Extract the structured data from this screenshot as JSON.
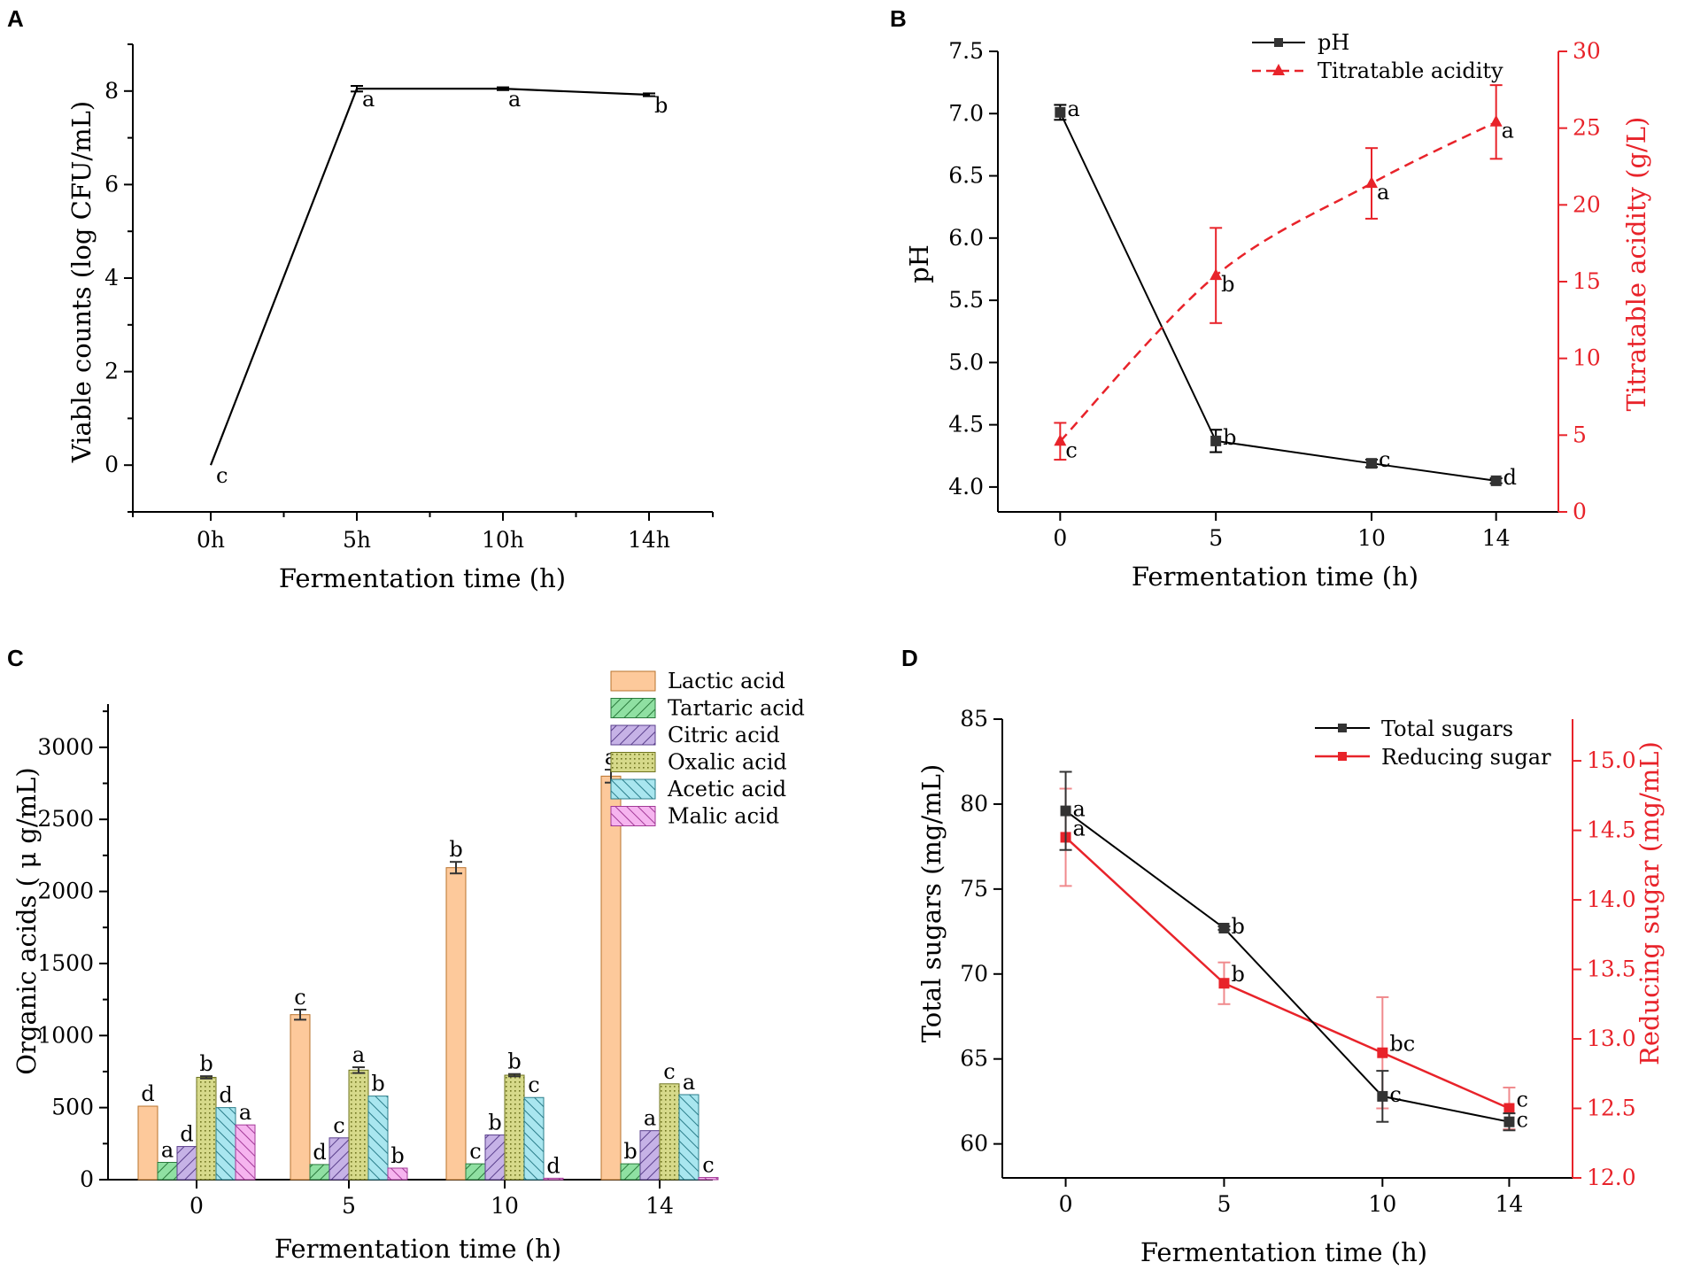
{
  "figure": {
    "panel_labels": [
      "A",
      "B",
      "C",
      "D"
    ]
  },
  "colors": {
    "black": "#000000",
    "dark": "#333333",
    "red": "#e8232a"
  },
  "chart_data": [
    {
      "id": "A",
      "type": "line",
      "xlabel": "Fermentation time (h)",
      "ylabel": "Viable counts (log CFU/mL)",
      "categories": [
        "0h",
        "5h",
        "10h",
        "14h"
      ],
      "ylim": [
        -1,
        9
      ],
      "yticks": [
        0,
        2,
        4,
        6,
        8
      ],
      "series": [
        {
          "name": "Viable counts",
          "values": [
            0,
            8.05,
            8.05,
            7.92
          ],
          "errors": [
            0,
            0.06,
            0.03,
            0.03
          ],
          "letters": [
            "c",
            "a",
            "a",
            "b"
          ]
        }
      ]
    },
    {
      "id": "B",
      "type": "line",
      "xlabel": "Fermentation time (h)",
      "ylabel": "pH",
      "y2label": "Titratable acidity (g/L)",
      "x": [
        0,
        5,
        10,
        14
      ],
      "xlim": [
        -2,
        16
      ],
      "xticks": [
        "0",
        "5",
        "10",
        "14"
      ],
      "ylim": [
        3.8,
        7.5
      ],
      "yticks": [
        "4.0",
        "4.5",
        "5.0",
        "5.5",
        "6.0",
        "6.5",
        "7.0",
        "7.5"
      ],
      "y2lim": [
        0,
        30
      ],
      "y2ticks": [
        "0",
        "5",
        "10",
        "15",
        "20",
        "25",
        "30"
      ],
      "series": [
        {
          "name": "pH",
          "axis": "left",
          "values": [
            7.01,
            4.37,
            4.19,
            4.05
          ],
          "errors": [
            0.06,
            0.09,
            0.03,
            0.02
          ],
          "letters": [
            "a",
            "b",
            "c",
            "d"
          ]
        },
        {
          "name": "Titratable acidity",
          "axis": "right",
          "values": [
            4.6,
            15.4,
            21.4,
            25.4
          ],
          "errors": [
            1.2,
            3.1,
            2.3,
            2.4
          ],
          "letters": [
            "c",
            "b",
            "a",
            "a"
          ]
        }
      ]
    },
    {
      "id": "C",
      "type": "bar",
      "xlabel": "Fermentation time (h)",
      "ylabel": "Organic acids ( μ g/mL)",
      "categories": [
        "0",
        "5",
        "10",
        "14"
      ],
      "ylim": [
        0,
        3300
      ],
      "yticks": [
        "0",
        "500",
        "1000",
        "1500",
        "2000",
        "2500",
        "3000"
      ],
      "series": [
        {
          "name": "Lactic acid",
          "values": [
            510,
            1145,
            2165,
            2800
          ],
          "errors": [
            0,
            35,
            40,
            45
          ],
          "letters": [
            "d",
            "c",
            "b",
            "a"
          ]
        },
        {
          "name": "Tartaric acid",
          "values": [
            120,
            105,
            110,
            110
          ],
          "errors": [
            0,
            0,
            0,
            0
          ],
          "letters": [
            "a",
            "d",
            "c",
            "b"
          ]
        },
        {
          "name": "Citric acid",
          "values": [
            230,
            290,
            310,
            340
          ],
          "errors": [
            0,
            0,
            0,
            0
          ],
          "letters": [
            "d",
            "c",
            "b",
            "a"
          ]
        },
        {
          "name": "Oxalic acid",
          "values": [
            710,
            760,
            725,
            665
          ],
          "errors": [
            8,
            20,
            8,
            0
          ],
          "letters": [
            "b",
            "a",
            "b",
            "c"
          ]
        },
        {
          "name": "Acetic acid",
          "values": [
            500,
            580,
            570,
            590
          ],
          "errors": [
            0,
            0,
            0,
            0
          ],
          "letters": [
            "d",
            "b",
            "c",
            "a"
          ]
        },
        {
          "name": "Malic acid",
          "values": [
            380,
            80,
            10,
            15
          ],
          "errors": [
            0,
            0,
            0,
            0
          ],
          "letters": [
            "a",
            "b",
            "d",
            "c"
          ]
        }
      ]
    },
    {
      "id": "D",
      "type": "line",
      "xlabel": "Fermentation time (h)",
      "ylabel": "Total sugars (mg/mL)",
      "y2label": "Reducing sugar (mg/mL)",
      "x": [
        0,
        5,
        10,
        14
      ],
      "xlim": [
        -2,
        16
      ],
      "xticks": [
        "0",
        "5",
        "10",
        "14"
      ],
      "ylim": [
        58,
        85
      ],
      "yticks": [
        "60",
        "65",
        "70",
        "75",
        "80",
        "85"
      ],
      "y2lim": [
        12.0,
        15.3
      ],
      "y2ticks": [
        "12.0",
        "12.5",
        "13.0",
        "13.5",
        "14.0",
        "14.5",
        "15.0"
      ],
      "series": [
        {
          "name": "Total sugars",
          "axis": "left",
          "values": [
            79.6,
            72.7,
            62.8,
            61.3
          ],
          "errors": [
            2.3,
            0.1,
            1.5,
            0.5
          ],
          "letters": [
            "a",
            "b",
            "c",
            "c"
          ]
        },
        {
          "name": "Reducing sugar",
          "axis": "right",
          "values": [
            14.45,
            13.4,
            12.9,
            12.5
          ],
          "errors": [
            0.35,
            0.15,
            0.4,
            0.15
          ],
          "letters": [
            "a",
            "b",
            "bc",
            "c"
          ]
        }
      ]
    }
  ]
}
